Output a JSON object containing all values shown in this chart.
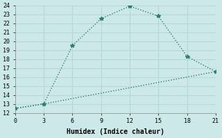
{
  "line1_x": [
    0,
    3,
    6,
    9,
    12,
    15,
    18,
    21
  ],
  "line1_y": [
    12.5,
    13.0,
    19.5,
    22.5,
    23.9,
    22.8,
    18.3,
    16.6
  ],
  "line2_x": [
    0,
    3,
    21
  ],
  "line2_y": [
    12.5,
    13.0,
    16.6
  ],
  "line_color": "#2e7d6e",
  "background_color": "#cce8e8",
  "grid_color": "#b8d8d8",
  "xlabel": "Humidex (Indice chaleur)",
  "xlim": [
    0,
    21
  ],
  "ylim": [
    12,
    24
  ],
  "xticks": [
    0,
    3,
    6,
    9,
    12,
    15,
    18,
    21
  ],
  "yticks": [
    12,
    13,
    14,
    15,
    16,
    17,
    18,
    19,
    20,
    21,
    22,
    23,
    24
  ],
  "marker": "*",
  "markersize": 4,
  "linewidth": 1.0,
  "font_family": "monospace"
}
